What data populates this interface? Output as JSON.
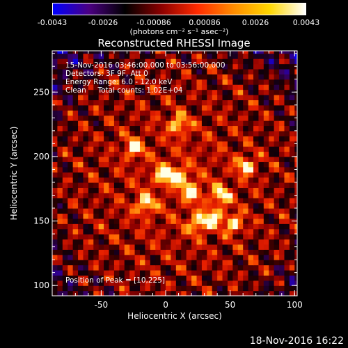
{
  "colorbar": {
    "ticks": [
      "-0.0043",
      "-0.0026",
      "-0.00086",
      "0.00086",
      "0.0026",
      "0.0043"
    ],
    "units_text": "(photons cm",
    "units_full": "(photons cm⁻² s⁻¹ asec⁻²)",
    "colors": [
      "#0000ff",
      "#4b0082",
      "#000000",
      "#8b0000",
      "#ff2a00",
      "#ff8c00",
      "#ffd700",
      "#ffffff"
    ]
  },
  "title": "Reconstructed RHESSI Image",
  "info": {
    "line1": "15-Nov-2016 03:46:00.000 to 03:56:00.000",
    "line2": "Detectors: 3F 9F, Att 0",
    "line3": "Energy Range: 6.0 - 12.0 keV",
    "line4": "Clean     Total counts: 1.02E+04",
    "peak": "Position of Peak = [10,225]"
  },
  "timestamp": "18-Nov-2016 16:22",
  "chart_data": {
    "type": "heatmap",
    "title": "Reconstructed RHESSI Image",
    "xlabel": "Heliocentric X (arcsec)",
    "ylabel": "Heliocentric Y (arcsec)",
    "xlim": [
      -88,
      102
    ],
    "ylim": [
      92,
      282
    ],
    "x_ticks": [
      -50,
      0,
      50,
      100
    ],
    "y_ticks": [
      100,
      150,
      200,
      250
    ],
    "colorbar_range": [
      -0.0043,
      0.0043
    ],
    "peak_position": [
      10,
      225
    ],
    "bright_sources": [
      {
        "x": 10,
        "y": 225
      },
      {
        "x": 10,
        "y": 185
      },
      {
        "x": -2,
        "y": 186
      },
      {
        "x": 20,
        "y": 173
      },
      {
        "x": -16,
        "y": 163
      },
      {
        "x": 25,
        "y": 148
      },
      {
        "x": 53,
        "y": 148
      },
      {
        "x": 37,
        "y": 153
      },
      {
        "x": 62,
        "y": 193
      },
      {
        "x": -25,
        "y": 207
      },
      {
        "x": 43,
        "y": 170
      }
    ]
  }
}
